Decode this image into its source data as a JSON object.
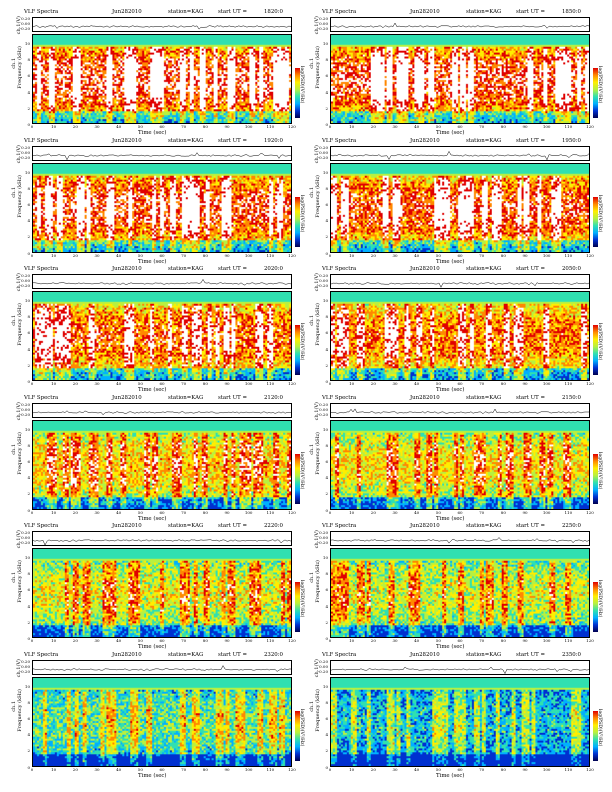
{
  "chart_data": {
    "type": "heatmap",
    "panel_count": 12,
    "header": {
      "title": "VLF Spectra",
      "station": "station=KAG",
      "start_prefix": "start  UT  ="
    },
    "date_labels": [
      "Jun282010",
      "Jun282010",
      "Jun282010",
      "Jun282010",
      "Jun282010",
      "Jun282010",
      "Jun282010",
      "Jun282010",
      "Jun282010",
      "Jun282010",
      "Jun282010",
      "Jun282010"
    ],
    "start_times": [
      "1820:0",
      "1850:0",
      "1920:0",
      "1950:0",
      "2020:0",
      "2050:0",
      "2120:0",
      "2150:0",
      "2220:0",
      "2250:0",
      "2320:0",
      "2350:0"
    ],
    "top_ylabel": "ch.1(V)",
    "top_yticks": [
      "0.20",
      "0.00",
      "-0.20"
    ],
    "freq_ylabel": "Frequency  (kHz)",
    "ch_label": "ch.1",
    "freq_yticks": [
      "0",
      "2",
      "4",
      "6",
      "8",
      "10"
    ],
    "xlabel": "Time  (sec)",
    "xticks": [
      "0",
      "10",
      "20",
      "30",
      "40",
      "50",
      "60",
      "70",
      "80",
      "90",
      "100",
      "110",
      "120"
    ],
    "xlim": [
      0,
      120
    ],
    "ylim_khz": [
      0,
      10
    ],
    "colorbar_label": "log(PSD)(V²/Hz)",
    "intensity": [
      0.92,
      0.9,
      0.88,
      0.86,
      0.82,
      0.78,
      0.66,
      0.62,
      0.58,
      0.55,
      0.42,
      0.3
    ],
    "colors": [
      "#000050",
      "#0030d0",
      "#00b0ff",
      "#30e0b0",
      "#b8f040",
      "#ffee00",
      "#ff8800",
      "#e00000",
      "#ffffff"
    ]
  }
}
